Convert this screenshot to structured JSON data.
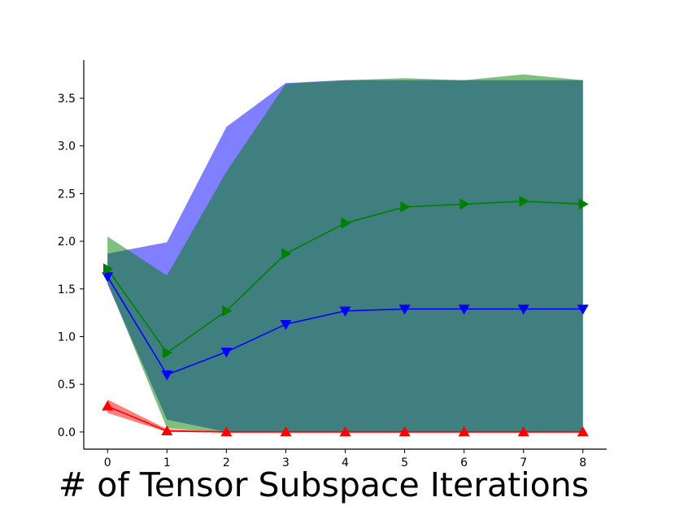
{
  "chart_data": {
    "type": "line",
    "title": "",
    "xlabel": "# of Tensor Subspace Iterations",
    "ylabel": "",
    "x": [
      0,
      1,
      2,
      3,
      4,
      5,
      6,
      7,
      8
    ],
    "xlim": [
      -0.4,
      8.4
    ],
    "ylim": [
      -0.18,
      3.9
    ],
    "xticks": [
      "0",
      "1",
      "2",
      "3",
      "4",
      "5",
      "6",
      "7",
      "8"
    ],
    "yticks": [
      "0.0",
      "0.5",
      "1.0",
      "1.5",
      "2.0",
      "2.5",
      "3.0",
      "3.5"
    ],
    "grid": false,
    "legend": "none",
    "series": [
      {
        "color": "#ff0000",
        "marker": "triangle-up",
        "values": [
          0.27,
          0.01,
          0.0,
          0.0,
          0.0,
          0.0,
          0.0,
          0.0,
          0.0
        ],
        "band_lower": [
          0.2,
          0.0,
          0.0,
          0.0,
          0.0,
          0.0,
          0.0,
          0.0,
          0.0
        ],
        "band_upper": [
          0.34,
          0.03,
          0.01,
          0.01,
          0.01,
          0.01,
          0.01,
          0.01,
          0.01
        ]
      },
      {
        "color": "#0000ff",
        "marker": "triangle-down",
        "values": [
          1.63,
          0.6,
          0.84,
          1.13,
          1.27,
          1.29,
          1.29,
          1.29,
          1.29
        ],
        "band_lower": [
          1.55,
          0.13,
          0.0,
          0.0,
          0.0,
          0.0,
          0.0,
          0.0,
          0.0
        ],
        "band_upper": [
          1.87,
          1.99,
          3.2,
          3.66,
          3.69,
          3.69,
          3.69,
          3.69,
          3.69
        ]
      },
      {
        "color": "#008000",
        "marker": "triangle-right",
        "values": [
          1.71,
          0.83,
          1.27,
          1.87,
          2.19,
          2.36,
          2.39,
          2.42,
          2.39
        ],
        "band_lower": [
          1.57,
          0.04,
          0.0,
          0.0,
          0.0,
          0.0,
          0.0,
          0.0,
          0.0
        ],
        "band_upper": [
          2.05,
          1.64,
          2.73,
          3.65,
          3.69,
          3.71,
          3.69,
          3.75,
          3.69
        ]
      }
    ]
  }
}
